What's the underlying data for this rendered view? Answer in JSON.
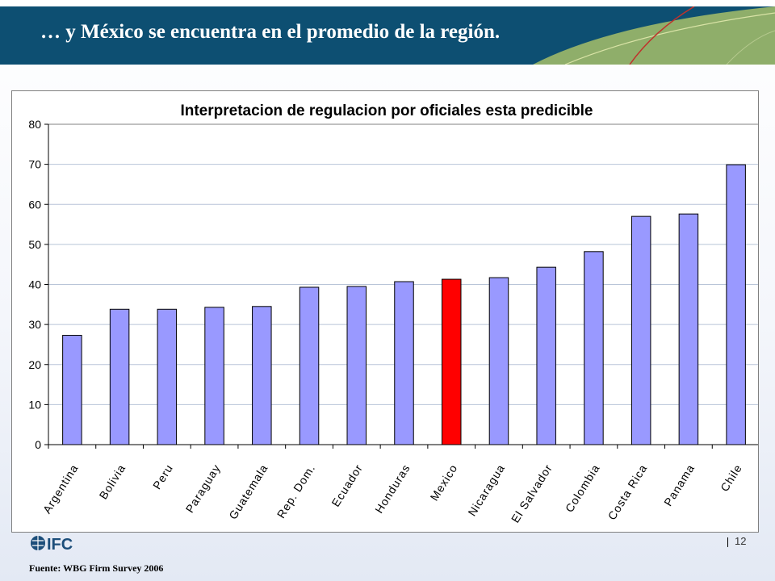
{
  "slide": {
    "title": "… y México se encuentra en el promedio de la región.",
    "page_number": "12",
    "source": "Fuente: WBG Firm Survey 2006",
    "logo_text": "IFC",
    "colors": {
      "banner": "#0d4f72",
      "banner_green": "#8fae6a",
      "accent_line": "#c0312b"
    }
  },
  "chart_data": {
    "type": "bar",
    "title": "Interpretacion de regulacion por oficiales esta predicible",
    "categories": [
      "Argentina",
      "Bolivia",
      "Peru",
      "Paraguay",
      "Guatemala",
      "Rep. Dom.",
      "Ecuador",
      "Honduras",
      "Mexico",
      "Nicaragua",
      "El Salvador",
      "Colombia",
      "Costa Rica",
      "Panama",
      "Chile"
    ],
    "values": [
      27.3,
      33.8,
      33.8,
      34.3,
      34.5,
      39.3,
      39.5,
      40.7,
      41.3,
      41.7,
      44.3,
      48.2,
      57.0,
      57.6,
      69.9
    ],
    "highlight_category": "Mexico",
    "bar_color": "#9999ff",
    "highlight_color": "#ff0000",
    "ylim": [
      0,
      80
    ],
    "yticks": [
      0,
      10,
      20,
      30,
      40,
      50,
      60,
      70,
      80
    ],
    "grid": true,
    "legend": "none"
  }
}
